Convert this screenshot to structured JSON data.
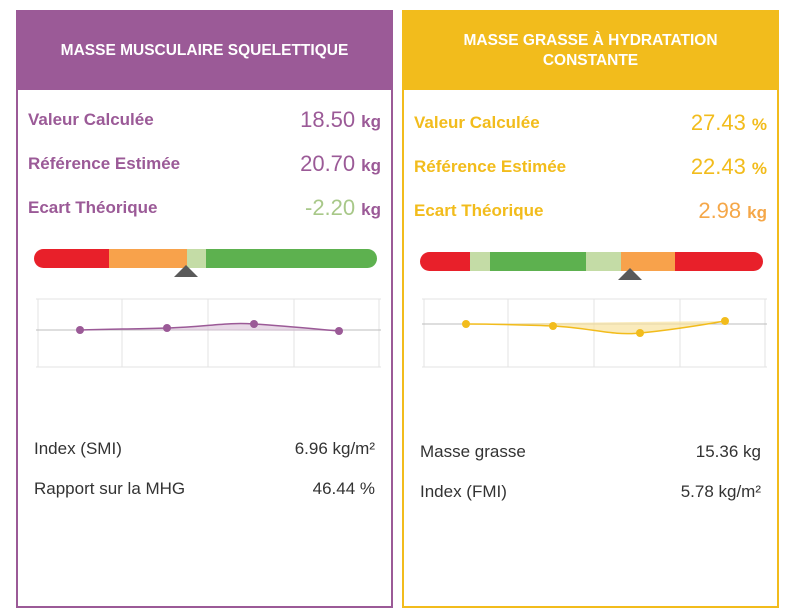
{
  "colors": {
    "purple": "#9b5a97",
    "yellow": "#f2bc1c",
    "orange": "#f5a748",
    "light_green": "#a8c889",
    "red": "#e8202a",
    "orange_seg": "#f8a24b",
    "pale_green": "#c4dca6",
    "green": "#5db14f"
  },
  "left": {
    "title": "MASSE MUSCULAIRE SQUELETTIQUE",
    "metrics": [
      {
        "label": "Valeur Calculée",
        "value": "18.50",
        "unit": "kg"
      },
      {
        "label": "Référence Estimée",
        "value": "20.70",
        "unit": "kg"
      },
      {
        "label": "Ecart Théorique",
        "value": "-2.20",
        "unit": "kg"
      }
    ],
    "info": [
      {
        "label": "Index (SMI)",
        "value": "6.96 kg/m²"
      },
      {
        "label": "Rapport sur la MHG",
        "value": "46.44 %"
      }
    ]
  },
  "right": {
    "title": "MASSE GRASSE À HYDRATATION CONSTANTE",
    "metrics": [
      {
        "label": "Valeur Calculée",
        "value": "27.43",
        "unit": "%"
      },
      {
        "label": "Référence Estimée",
        "value": "22.43",
        "unit": "%"
      },
      {
        "label": "Ecart Théorique",
        "value": "2.98",
        "unit": "kg"
      }
    ],
    "info": [
      {
        "label": "Masse grasse",
        "value": "15.36 kg"
      },
      {
        "label": "Index (FMI)",
        "value": "5.78 kg/m²"
      }
    ]
  }
}
